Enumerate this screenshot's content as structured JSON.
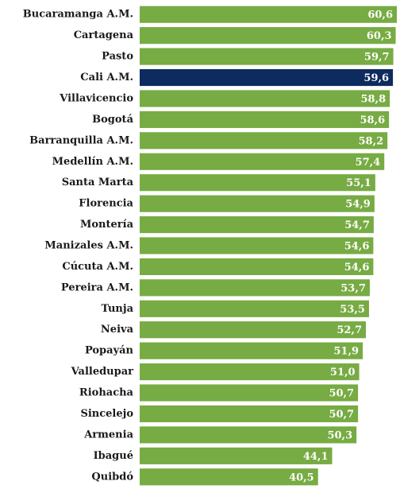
{
  "chart_data": {
    "type": "bar",
    "orientation": "horizontal",
    "categories": [
      "Bucaramanga A.M.",
      "Cartagena",
      "Pasto",
      "Cali A.M.",
      "Villavicencio",
      "Bogotá",
      "Barranquilla A.M.",
      "Medellín A.M.",
      "Santa Marta",
      "Florencia",
      "Montería",
      "Manizales A.M.",
      "Cúcuta A.M.",
      "Pereira A.M.",
      "Tunja",
      "Neiva",
      "Popayán",
      "Valledupar",
      "Riohacha",
      "Sincelejo",
      "Armenia",
      "Ibagué",
      "Quibdó"
    ],
    "values": [
      60.6,
      60.3,
      59.7,
      59.6,
      58.8,
      58.6,
      58.2,
      57.4,
      55.1,
      54.9,
      54.7,
      54.6,
      54.6,
      53.7,
      53.5,
      52.7,
      51.9,
      51.0,
      50.7,
      50.7,
      50.3,
      44.1,
      40.5
    ],
    "value_labels": [
      "60,6",
      "60,3",
      "59,7",
      "59,6",
      "58,8",
      "58,6",
      "58,2",
      "57,4",
      "55,1",
      "54,9",
      "54,7",
      "54,6",
      "54,6",
      "53,7",
      "53,5",
      "52,7",
      "51,9",
      "51,0",
      "50,7",
      "50,7",
      "50,3",
      "44,1",
      "40,5"
    ],
    "colors": [
      "#77ab43",
      "#77ab43",
      "#77ab43",
      "#0d2b5e",
      "#77ab43",
      "#77ab43",
      "#77ab43",
      "#77ab43",
      "#77ab43",
      "#77ab43",
      "#77ab43",
      "#77ab43",
      "#77ab43",
      "#77ab43",
      "#77ab43",
      "#77ab43",
      "#77ab43",
      "#77ab43",
      "#77ab43",
      "#77ab43",
      "#77ab43",
      "#77ab43",
      "#77ab43"
    ],
    "xlim": [
      -5,
      61
    ]
  }
}
